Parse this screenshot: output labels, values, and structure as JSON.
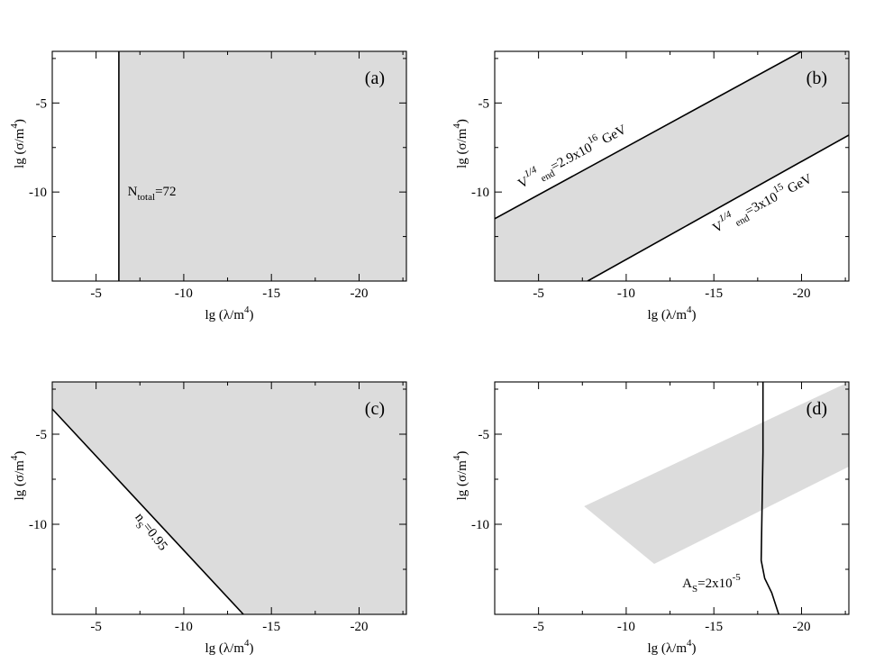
{
  "chart_data": [
    {
      "type": "area",
      "panel_label": "(a)",
      "xlabel": "lg (λ/m",
      "xlabel_sup": "4",
      "xlabel_close": ")",
      "ylabel": "lg (σ/m",
      "ylabel_sup": "4",
      "ylabel_close": ")",
      "xlim": [
        -2.5,
        -22.7
      ],
      "ylim": [
        -15,
        -2.1
      ],
      "xticks": [
        -5,
        -10,
        -15,
        -20
      ],
      "yticks": [
        -5,
        -10
      ],
      "xtick_labels": [
        "-5",
        "-10",
        "-15",
        "-20"
      ],
      "ytick_labels": [
        "-5",
        "-10"
      ],
      "regions": [
        {
          "points": [
            [
              -6.3,
              -2.1
            ],
            [
              -22.7,
              -2.1
            ],
            [
              -22.7,
              -15
            ],
            [
              -6.3,
              -15
            ]
          ]
        }
      ],
      "curves": [
        {
          "name": "N_total=72",
          "points": [
            [
              -6.3,
              -2.1
            ],
            [
              -6.3,
              -15
            ]
          ]
        }
      ],
      "annotations": [
        {
          "text_main": "N",
          "text_sub": "total",
          "text_after": "=72",
          "x": -6.8,
          "y": -10.2,
          "rotate": false
        }
      ]
    },
    {
      "type": "area",
      "panel_label": "(b)",
      "xlabel": "lg (λ/m",
      "xlabel_sup": "4",
      "xlabel_close": ")",
      "ylabel": "lg (σ/m",
      "ylabel_sup": "4",
      "ylabel_close": ")",
      "xlim": [
        -2.5,
        -22.7
      ],
      "ylim": [
        -15,
        -2.1
      ],
      "xticks": [
        -5,
        -10,
        -15,
        -20
      ],
      "yticks": [
        -5,
        -10
      ],
      "xtick_labels": [
        "-5",
        "-10",
        "-15",
        "-20"
      ],
      "ytick_labels": [
        "-5",
        "-10"
      ],
      "regions": [
        {
          "points": [
            [
              -2.5,
              -11.5
            ],
            [
              -20,
              -2.1
            ],
            [
              -22.7,
              -2.1
            ],
            [
              -22.7,
              -6.8
            ],
            [
              -7.8,
              -15
            ],
            [
              -2.5,
              -15
            ]
          ]
        }
      ],
      "curves": [
        {
          "name": "V_end^1/4=2.9x10^16 GeV",
          "points": [
            [
              -2.5,
              -11.5
            ],
            [
              -20,
              -2.1
            ]
          ]
        },
        {
          "name": "V_end^1/4=3x10^15 GeV",
          "points": [
            [
              -7.8,
              -15
            ],
            [
              -22.7,
              -6.8
            ]
          ]
        }
      ],
      "annotations": [
        {
          "text_main": "V",
          "text_sup": "1/4",
          "text_sub": "end",
          "text_after": "=2.9x10",
          "text_sup2": "16",
          "text_tail": " GeV",
          "x": -4.0,
          "y": -9.8,
          "rotate": true,
          "angle": -28
        },
        {
          "text_main": "V",
          "text_sup": "1/4",
          "text_sub": "end",
          "text_after": "=3x10",
          "text_sup2": "15",
          "text_tail": " GeV",
          "x": -15.1,
          "y": -12.3,
          "rotate": true,
          "angle": -28
        }
      ]
    },
    {
      "type": "area",
      "panel_label": "(c)",
      "xlabel": "lg (λ/m",
      "xlabel_sup": "4",
      "xlabel_close": ")",
      "ylabel": "lg (σ/m",
      "ylabel_sup": "4",
      "ylabel_close": ")",
      "xlim": [
        -2.5,
        -22.7
      ],
      "ylim": [
        -15,
        -2.1
      ],
      "xticks": [
        -5,
        -10,
        -15,
        -20
      ],
      "yticks": [
        -5,
        -10
      ],
      "xtick_labels": [
        "-5",
        "-10",
        "-15",
        "-20"
      ],
      "ytick_labels": [
        "-5",
        "-10"
      ],
      "regions": [
        {
          "points": [
            [
              -2.5,
              -2.1
            ],
            [
              -22.7,
              -2.1
            ],
            [
              -22.7,
              -15
            ],
            [
              -13.4,
              -15
            ],
            [
              -2.5,
              -3.6
            ]
          ]
        }
      ],
      "curves": [
        {
          "name": "n_s=0.95",
          "points": [
            [
              -2.5,
              -3.6
            ],
            [
              -13.4,
              -15
            ]
          ]
        }
      ],
      "annotations": [
        {
          "text_main": "n",
          "text_sub": "S",
          "text_after": "=0.95",
          "x": -7.2,
          "y": -9.6,
          "rotate": true,
          "angle": 52
        }
      ]
    },
    {
      "type": "area",
      "panel_label": "(d)",
      "xlabel": "lg (λ/m",
      "xlabel_sup": "4",
      "xlabel_close": ")",
      "ylabel": "lg (σ/m",
      "ylabel_sup": "4",
      "ylabel_close": ")",
      "xlim": [
        -2.5,
        -22.7
      ],
      "ylim": [
        -15,
        -2.1
      ],
      "xticks": [
        -5,
        -10,
        -15,
        -20
      ],
      "yticks": [
        -5,
        -10
      ],
      "xtick_labels": [
        "-5",
        "-10",
        "-15",
        "-20"
      ],
      "ytick_labels": [
        "-5",
        "-10"
      ],
      "regions": [
        {
          "points": [
            [
              -7.6,
              -9
            ],
            [
              -22.7,
              -2.1
            ],
            [
              -22.7,
              -6.8
            ],
            [
              -11.6,
              -12.2
            ]
          ]
        }
      ],
      "curves": [
        {
          "name": "A_S=2x10^-5",
          "points": [
            [
              -17.8,
              -2.1
            ],
            [
              -17.8,
              -6
            ],
            [
              -17.75,
              -9
            ],
            [
              -17.7,
              -12
            ],
            [
              -17.9,
              -13
            ],
            [
              -18.3,
              -13.8
            ],
            [
              -18.7,
              -15
            ]
          ]
        }
      ],
      "annotations": [
        {
          "text_main": "A",
          "text_sub": "S",
          "text_after": "=2x10",
          "text_sup2": "-5",
          "x": -13.2,
          "y": -13.5,
          "rotate": false
        }
      ]
    }
  ]
}
